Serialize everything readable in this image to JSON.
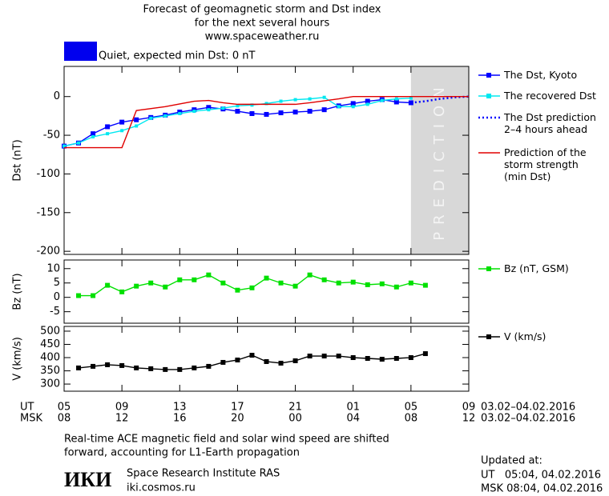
{
  "header": {
    "title_lines": [
      "Forecast of geomagnetic storm and Dst index",
      "for the next several hours",
      "www.spaceweather.ru"
    ],
    "status": "Quiet, expected min Dst: 0 nT"
  },
  "chart_data": [
    {
      "type": "line",
      "ylabel": "Dst (nT)",
      "xlim": [
        0,
        28
      ],
      "ylim": [
        -204,
        39
      ],
      "yticks": [
        0,
        -50,
        -100,
        -150,
        -200
      ],
      "shade": [
        24,
        28
      ],
      "shade_label": "PREDICTION",
      "series": [
        {
          "name": "The Dst, Kyoto",
          "color": "#0000ff",
          "marker": "square",
          "dash": "none",
          "x": [
            0,
            1,
            2,
            3,
            4,
            5,
            6,
            7,
            8,
            9,
            10,
            11,
            12,
            13,
            14,
            15,
            16,
            17,
            18,
            19,
            20,
            21,
            22,
            23,
            24
          ],
          "values": [
            -64,
            -60,
            -48,
            -39,
            -33,
            -30,
            -27,
            -24,
            -20,
            -17,
            -14,
            -16,
            -19,
            -22,
            -23,
            -21,
            -20,
            -19,
            -17,
            -12,
            -9,
            -6,
            -4,
            -7,
            -8
          ]
        },
        {
          "name": "The recovered Dst",
          "color": "#00e8f0",
          "marker": "small",
          "dash": "none",
          "x": [
            0,
            1,
            2,
            3,
            4,
            5,
            6,
            7,
            8,
            9,
            10,
            11,
            12,
            13,
            14,
            15,
            16,
            17,
            18,
            19,
            20,
            21,
            22,
            23,
            24
          ],
          "values": [
            -64,
            -60,
            -52,
            -48,
            -44,
            -38,
            -28,
            -25,
            -22,
            -19,
            -17,
            -15,
            -12,
            -11,
            -9,
            -6,
            -4,
            -3,
            -1,
            -13,
            -13,
            -10,
            -5,
            -3,
            -2
          ]
        },
        {
          "name": "The Dst prediction\n2–4 hours ahead",
          "color": "#0000ff",
          "marker": "none",
          "dash": "dotted",
          "x": [
            24,
            25,
            26,
            27,
            28
          ],
          "values": [
            -8,
            -6,
            -3,
            -1,
            0
          ]
        },
        {
          "name": "Prediction of the\nstorm strength\n(min Dst)",
          "color": "#e00000",
          "marker": "none",
          "dash": "none",
          "x": [
            0,
            4,
            5,
            7,
            9,
            10,
            11,
            12,
            16,
            17,
            19,
            20,
            28
          ],
          "values": [
            -66,
            -66,
            -18,
            -13,
            -6,
            -5,
            -8,
            -10,
            -10,
            -8,
            -3,
            0,
            0
          ]
        }
      ]
    },
    {
      "type": "line",
      "ylabel": "Bz (nT)",
      "xlim": [
        0,
        28
      ],
      "ylim": [
        -9,
        13
      ],
      "yticks": [
        10,
        5,
        0,
        -5
      ],
      "series": [
        {
          "name": "Bz (nT, GSM)",
          "color": "#00e000",
          "marker": "square",
          "dash": "none",
          "x": [
            1,
            2,
            3,
            4,
            5,
            6,
            7,
            8,
            9,
            10,
            11,
            12,
            13,
            14,
            15,
            16,
            17,
            18,
            19,
            20,
            21,
            22,
            23,
            24,
            25
          ],
          "values": [
            0.6,
            0.6,
            4.2,
            1.9,
            3.9,
            5.0,
            3.6,
            6.1,
            6.1,
            7.8,
            5.0,
            2.5,
            3.3,
            6.7,
            5.0,
            3.9,
            7.8,
            6.1,
            5.0,
            5.3,
            4.4,
            4.7,
            3.6,
            5.0,
            4.2
          ]
        }
      ]
    },
    {
      "type": "line",
      "ylabel": "V (km/s)",
      "xlim": [
        0,
        28
      ],
      "ylim": [
        273,
        518
      ],
      "yticks": [
        500,
        450,
        400,
        350,
        300
      ],
      "xlabel": "UT",
      "x2label": "MSK",
      "xrange_label": "03.02–04.02.2016",
      "x2range_label": "03.02–04.02.2016",
      "xticks": [
        {
          "value": 0,
          "label": "05"
        },
        {
          "value": 4,
          "label": "09"
        },
        {
          "value": 8,
          "label": "13"
        },
        {
          "value": 12,
          "label": "17"
        },
        {
          "value": 16,
          "label": "21"
        },
        {
          "value": 20,
          "label": "01"
        },
        {
          "value": 24,
          "label": "05"
        },
        {
          "value": 28,
          "label": "09"
        }
      ],
      "x2ticks": [
        {
          "value": 0,
          "label": "08"
        },
        {
          "value": 4,
          "label": "12"
        },
        {
          "value": 8,
          "label": "16"
        },
        {
          "value": 12,
          "label": "20"
        },
        {
          "value": 16,
          "label": "00"
        },
        {
          "value": 20,
          "label": "04"
        },
        {
          "value": 24,
          "label": "08"
        },
        {
          "value": 28,
          "label": "12"
        }
      ],
      "series": [
        {
          "name": "V (km/s)",
          "color": "#000000",
          "marker": "square",
          "dash": "none",
          "x": [
            1,
            2,
            3,
            4,
            5,
            6,
            7,
            8,
            9,
            10,
            11,
            12,
            13,
            14,
            15,
            16,
            17,
            18,
            19,
            20,
            21,
            22,
            23,
            24,
            25
          ],
          "values": [
            361,
            367,
            373,
            370,
            361,
            358,
            355,
            355,
            361,
            367,
            382,
            391,
            409,
            385,
            379,
            388,
            406,
            406,
            406,
            400,
            397,
            394,
            397,
            400,
            415
          ]
        }
      ]
    }
  ],
  "footer": {
    "note_lines": [
      "Real-time ACE magnetic field and solar wind speed are shifted",
      "forward, accounting for L1-Earth propagation"
    ],
    "logo": "ИКИ",
    "institute": "Space Research Institute RAS",
    "site": "iki.cosmos.ru",
    "updated_lines": [
      "Updated at:",
      "UT   05:04, 04.02.2016",
      "MSK 08:04, 04.02.2016"
    ]
  }
}
